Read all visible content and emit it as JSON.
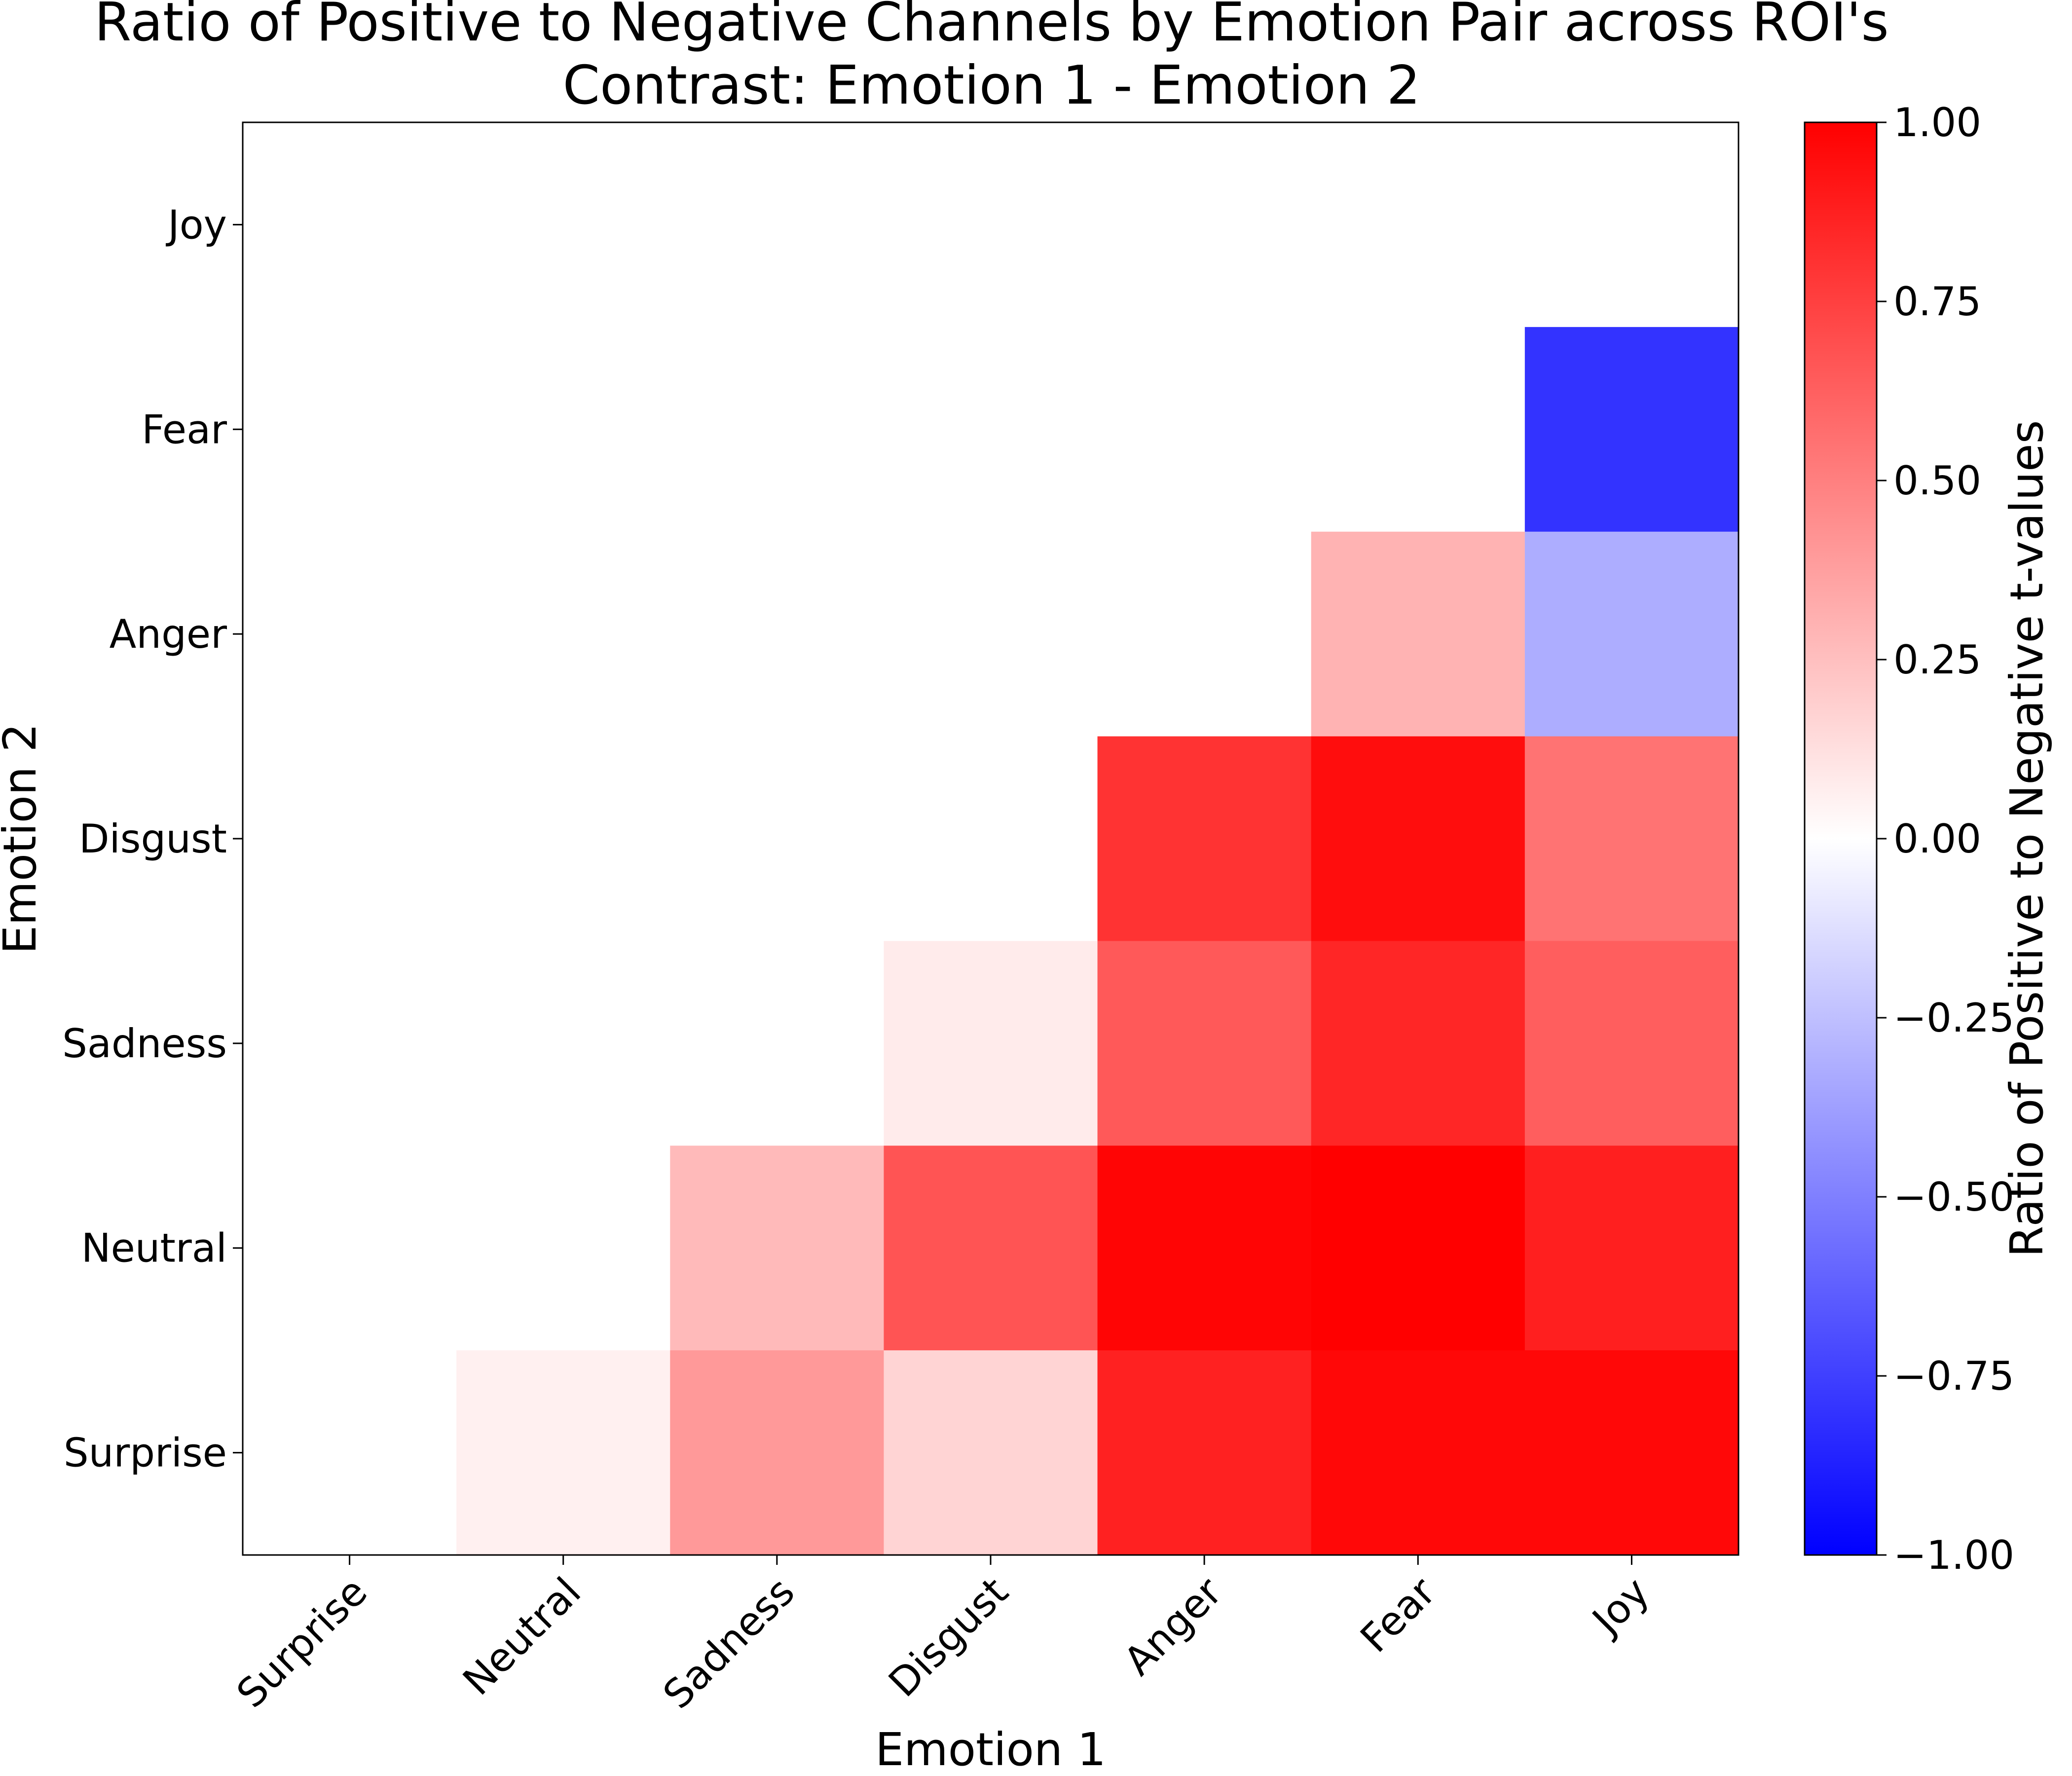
{
  "chart_data": {
    "type": "heatmap",
    "title": "Ratio of Positive to Negative Channels by Emotion Pair across ROI's",
    "subtitle": "Contrast: Emotion 1 - Emotion 2",
    "xlabel": "Emotion 1",
    "ylabel": "Emotion 2",
    "x_categories": [
      "Surprise",
      "Neutral",
      "Sadness",
      "Disgust",
      "Anger",
      "Fear",
      "Joy"
    ],
    "y_categories": [
      "Joy",
      "Fear",
      "Anger",
      "Disgust",
      "Sadness",
      "Neutral",
      "Surprise"
    ],
    "values": [
      [
        null,
        null,
        null,
        null,
        null,
        null,
        null
      ],
      [
        null,
        null,
        null,
        null,
        null,
        null,
        -0.8
      ],
      [
        null,
        null,
        null,
        null,
        null,
        0.3,
        -0.32
      ],
      [
        null,
        null,
        null,
        null,
        0.8,
        0.95,
        0.55
      ],
      [
        null,
        null,
        null,
        0.08,
        0.65,
        0.85,
        0.63
      ],
      [
        null,
        null,
        0.27,
        0.67,
        0.98,
        1.0,
        0.88
      ],
      [
        null,
        0.06,
        0.4,
        0.17,
        0.87,
        0.97,
        0.97
      ]
    ],
    "colorbar": {
      "label": "Ratio of Positive to Negative t-values",
      "vmin": -1.0,
      "vmax": 1.0,
      "ticks": [
        1.0,
        0.75,
        0.5,
        0.25,
        0.0,
        -0.25,
        -0.5,
        -0.75,
        -1.0
      ],
      "tick_labels": [
        "1.00",
        "0.75",
        "0.50",
        "0.25",
        "0.00",
        "−0.25",
        "−0.50",
        "−0.75",
        "−1.00"
      ],
      "colormap": "bwr",
      "colors": {
        "low": "#0000ff",
        "mid": "#ffffff",
        "high": "#ff0000"
      }
    },
    "grid": false
  }
}
